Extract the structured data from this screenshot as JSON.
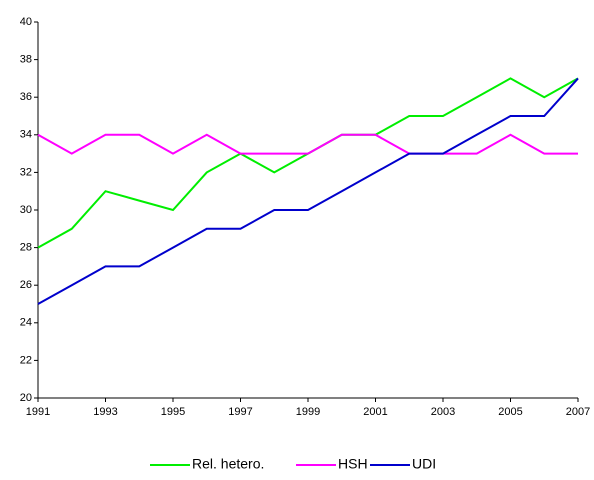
{
  "chart_data": {
    "type": "line",
    "x": [
      1991,
      1992,
      1993,
      1994,
      1995,
      1996,
      1997,
      1998,
      1999,
      2000,
      2001,
      2002,
      2003,
      2004,
      2005,
      2006,
      2007
    ],
    "series": [
      {
        "name": "Rel. hetero.",
        "color": "#00ee00",
        "values": [
          28,
          29,
          31,
          30.5,
          30,
          32,
          33,
          32,
          33,
          34,
          34,
          35,
          35,
          36,
          37,
          36,
          37
        ]
      },
      {
        "name": "HSH",
        "color": "#ff00ff",
        "values": [
          34,
          33,
          34,
          34,
          33,
          34,
          33,
          33,
          33,
          34,
          34,
          33,
          33,
          33,
          34,
          33,
          33
        ]
      },
      {
        "name": "UDI",
        "color": "#0000cc",
        "values": [
          25,
          26,
          27,
          27,
          28,
          29,
          29,
          30,
          30,
          31,
          32,
          33,
          33,
          34,
          35,
          35,
          37
        ]
      }
    ],
    "xlim": [
      1991,
      2007
    ],
    "xticks": [
      1991,
      1993,
      1995,
      1997,
      1999,
      2001,
      2003,
      2005,
      2007
    ],
    "ylim": [
      20,
      40
    ],
    "yticks": [
      20,
      22,
      24,
      26,
      28,
      30,
      32,
      34,
      36,
      38,
      40
    ],
    "grid": false,
    "legend": "bottom"
  }
}
